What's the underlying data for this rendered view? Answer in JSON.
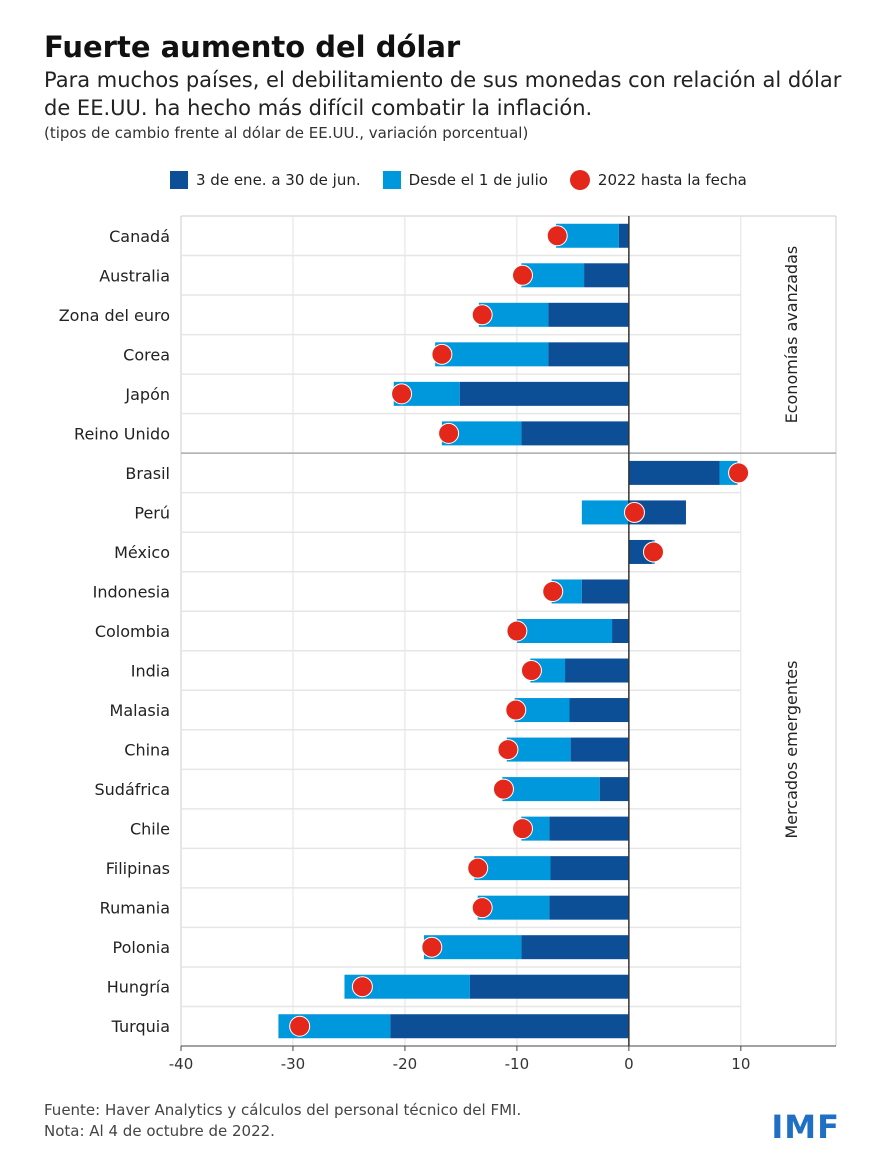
{
  "chart_data": {
    "type": "bar",
    "orientation": "horizontal",
    "stacked": true,
    "title": "Fuerte aumento del dólar",
    "subtitle": "Para muchos países, el debilitamiento de sus monedas con relación al dólar de EE.UU. ha hecho más difícil combatir la inflación.",
    "units_note": "(tipos de cambio frente al dólar de EE.UU., variación porcentual)",
    "legend_placement": "top",
    "categories": [
      "Canadá",
      "Australia",
      "Zona del euro",
      "Corea",
      "Japón",
      "Reino Unido",
      "Brasil",
      "Perú",
      "México",
      "Indonesia",
      "Colombia",
      "India",
      "Malasia",
      "China",
      "Sudáfrica",
      "Chile",
      "Filipinas",
      "Rumania",
      "Polonia",
      "Hungría",
      "Turquia"
    ],
    "groups": [
      {
        "label": "Economías avanzadas",
        "categories": [
          "Canadá",
          "Australia",
          "Zona del euro",
          "Corea",
          "Japón",
          "Reino Unido"
        ]
      },
      {
        "label": "Mercados emergentes",
        "categories": [
          "Brasil",
          "Perú",
          "México",
          "Indonesia",
          "Colombia",
          "India",
          "Malasia",
          "China",
          "Sudáfrica",
          "Chile",
          "Filipinas",
          "Rumania",
          "Polonia",
          "Hungría",
          "Turquia"
        ]
      }
    ],
    "series": [
      {
        "name": "3 de ene. a 30 de jun.",
        "type": "bar",
        "color": "#0d4f96",
        "values": [
          -0.9,
          -4.0,
          -7.2,
          -7.2,
          -15.1,
          -9.6,
          8.1,
          5.1,
          2.1,
          -4.2,
          -1.5,
          -5.7,
          -5.3,
          -5.2,
          -2.6,
          -7.1,
          -7.0,
          -7.1,
          -9.6,
          -14.2,
          -21.3
        ]
      },
      {
        "name": "Desde el 1 de julio",
        "type": "bar",
        "color": "#0098dc",
        "values": [
          -5.6,
          -5.6,
          -6.2,
          -10.1,
          -5.9,
          -7.1,
          1.6,
          -4.2,
          0.2,
          -2.7,
          -8.5,
          -3.1,
          -4.9,
          -5.7,
          -8.7,
          -2.5,
          -6.8,
          -6.4,
          -8.7,
          -11.2,
          -10.0
        ]
      },
      {
        "name": "2022 hasta la fecha",
        "type": "dot",
        "color": "#e3281b",
        "values": [
          -6.4,
          -9.5,
          -13.1,
          -16.7,
          -20.3,
          -16.1,
          9.8,
          0.5,
          2.2,
          -6.8,
          -10.0,
          -8.7,
          -10.1,
          -10.8,
          -11.2,
          -9.5,
          -13.5,
          -13.1,
          -17.6,
          -23.8,
          -29.4
        ]
      }
    ],
    "xlim": [
      -40,
      18.5
    ],
    "xticks": [
      -40,
      -30,
      -20,
      -10,
      0,
      10
    ],
    "grid": true,
    "source": "Fuente: Haver Analytics y cálculos del personal técnico del FMI.",
    "note": "Nota: Al 4 de octubre de 2022.",
    "logo": "IMF"
  }
}
